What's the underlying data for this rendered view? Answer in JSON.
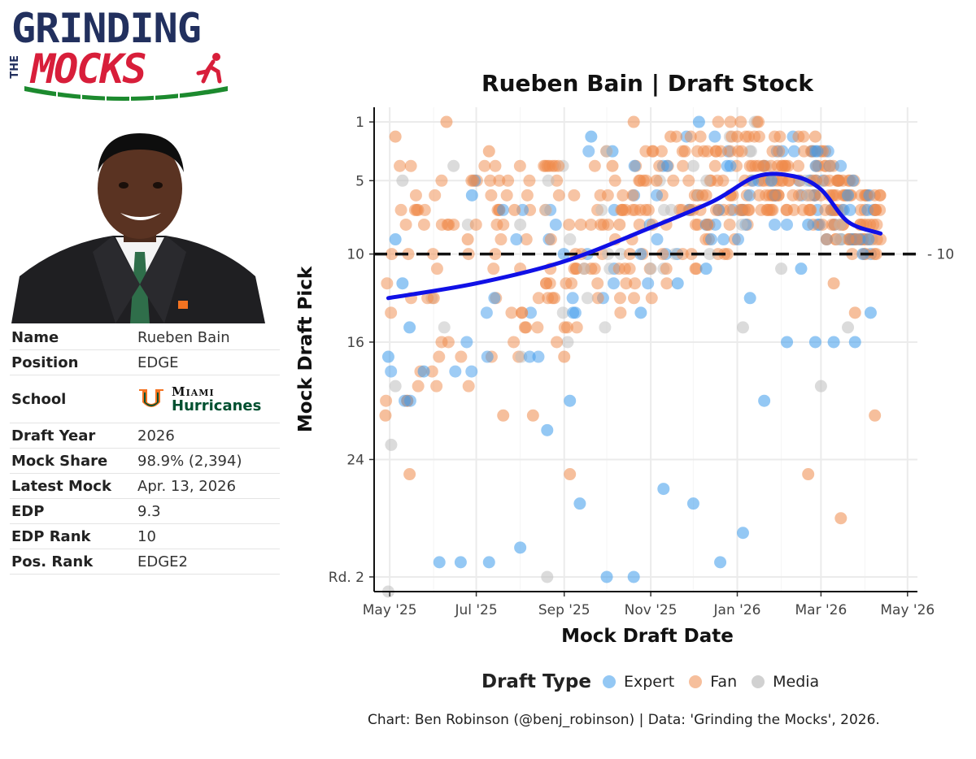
{
  "logo": {
    "line1": "GRINDING",
    "line2": "THE",
    "line3": "MOCKS"
  },
  "player": {
    "rows": [
      {
        "label": "Name",
        "value": "Rueben Bain"
      },
      {
        "label": "Position",
        "value": "EDGE"
      },
      {
        "label": "School",
        "value": ""
      },
      {
        "label": "Draft Year",
        "value": "2026"
      },
      {
        "label": "Mock Share",
        "value": "98.9% (2,394)"
      },
      {
        "label": "Latest Mock",
        "value": "Apr. 13, 2026"
      },
      {
        "label": "EDP",
        "value": "9.3"
      },
      {
        "label": "EDP Rank",
        "value": "10"
      },
      {
        "label": "Pos. Rank",
        "value": "EDGE2"
      }
    ],
    "school_line1": "Miami",
    "school_line2": "Hurricanes",
    "school_mark": "U"
  },
  "colors": {
    "expert": "#3d9aeb",
    "fan": "#ef8a4a",
    "media": "#bdbdbd",
    "trend": "#1010e6",
    "school_green": "#005030",
    "school_orange": "#f47321"
  },
  "caption": "Chart: Ben Robinson (@benj_robinson) | Data: 'Grinding the Mocks', 2026.",
  "chart_data": {
    "type": "scatter",
    "title": "Rueben Bain | Draft Stock",
    "xlabel": "Mock Draft Date",
    "ylabel": "Mock Draft Pick",
    "x_ticks": [
      "May '25",
      "Jul '25",
      "Sep '25",
      "Nov '25",
      "Jan '26",
      "Mar '26",
      "May '26"
    ],
    "x_range": [
      "2025-04-20",
      "2026-05-08"
    ],
    "y_ticks": [
      1,
      5,
      10,
      16,
      24,
      32
    ],
    "y_tick_labels": [
      "1",
      "5",
      "10",
      "16",
      "24",
      "Rd. 2"
    ],
    "y_range": [
      0,
      33
    ],
    "reference_line": {
      "y": 10,
      "label": "10",
      "style": "dashed"
    },
    "legend": {
      "title": "Draft Type",
      "entries": [
        "Expert",
        "Fan",
        "Media"
      ],
      "position": "bottom"
    },
    "trend": {
      "name": "smoothed average",
      "x": [
        "2025-04-30",
        "2025-07-01",
        "2025-09-01",
        "2025-11-01",
        "2025-12-15",
        "2026-01-15",
        "2026-02-10",
        "2026-03-01",
        "2026-03-20",
        "2026-04-12"
      ],
      "y": [
        13.0,
        12.0,
        10.5,
        8.2,
        6.4,
        4.7,
        4.7,
        5.6,
        7.8,
        8.6
      ]
    },
    "series": [
      {
        "name": "Expert",
        "sampled": true,
        "points": [
          [
            "2025-04-30",
            17
          ],
          [
            "2025-05-10",
            12
          ],
          [
            "2025-05-15",
            15
          ],
          [
            "2025-05-25",
            18
          ],
          [
            "2025-06-05",
            31
          ],
          [
            "2025-06-20",
            31
          ],
          [
            "2025-07-10",
            31
          ],
          [
            "2025-08-01",
            30
          ],
          [
            "2025-08-20",
            22
          ],
          [
            "2025-09-05",
            20
          ],
          [
            "2025-09-12",
            27
          ],
          [
            "2025-10-01",
            32
          ],
          [
            "2025-10-20",
            32
          ],
          [
            "2025-11-10",
            26
          ],
          [
            "2025-12-01",
            27
          ],
          [
            "2025-12-20",
            31
          ],
          [
            "2026-01-05",
            29
          ],
          [
            "2026-01-20",
            20
          ],
          [
            "2026-02-05",
            16
          ],
          [
            "2026-02-25",
            16
          ],
          [
            "2026-03-10",
            16
          ],
          [
            "2026-03-25",
            16
          ],
          [
            "2026-04-05",
            14
          ],
          [
            "2025-10-25",
            14
          ],
          [
            "2025-11-20",
            12
          ],
          [
            "2025-12-10",
            11
          ],
          [
            "2026-01-10",
            13
          ],
          [
            "2026-02-15",
            11
          ],
          [
            "2026-03-05",
            9
          ],
          [
            "2026-03-20",
            6
          ],
          [
            "2025-12-05",
            1
          ],
          [
            "2026-01-25",
            5
          ],
          [
            "2026-02-20",
            8
          ],
          [
            "2025-10-05",
            3
          ],
          [
            "2025-09-20",
            2
          ],
          [
            "2025-06-28",
            6
          ],
          [
            "2025-05-05",
            9
          ]
        ]
      },
      {
        "name": "Fan",
        "sampled": true,
        "points": [
          [
            "2025-04-28",
            21
          ],
          [
            "2025-05-05",
            2
          ],
          [
            "2025-05-20",
            7
          ],
          [
            "2025-06-10",
            1
          ],
          [
            "2025-06-25",
            9
          ],
          [
            "2025-07-10",
            3
          ],
          [
            "2025-07-28",
            7
          ],
          [
            "2025-08-10",
            21
          ],
          [
            "2025-08-25",
            13
          ],
          [
            "2025-09-05",
            25
          ],
          [
            "2025-09-20",
            11
          ],
          [
            "2025-10-05",
            4
          ],
          [
            "2025-10-20",
            1
          ],
          [
            "2025-11-05",
            5
          ],
          [
            "2025-11-25",
            3
          ],
          [
            "2025-12-10",
            6
          ],
          [
            "2026-01-01",
            2
          ],
          [
            "2026-01-20",
            4
          ],
          [
            "2026-02-05",
            7
          ],
          [
            "2026-02-20",
            25
          ],
          [
            "2026-03-05",
            9
          ],
          [
            "2026-03-15",
            28
          ],
          [
            "2026-03-25",
            14
          ],
          [
            "2026-04-08",
            21
          ],
          [
            "2025-05-15",
            25
          ],
          [
            "2025-06-01",
            13
          ],
          [
            "2025-07-20",
            21
          ],
          [
            "2025-08-05",
            15
          ],
          [
            "2025-09-01",
            17
          ],
          [
            "2025-10-10",
            8
          ],
          [
            "2025-11-15",
            2
          ],
          [
            "2025-12-25",
            10
          ],
          [
            "2026-01-30",
            6
          ],
          [
            "2026-02-25",
            2
          ],
          [
            "2026-03-10",
            12
          ]
        ]
      },
      {
        "name": "Media",
        "sampled": true,
        "points": [
          [
            "2025-04-30",
            33
          ],
          [
            "2025-05-02",
            23
          ],
          [
            "2025-05-05",
            19
          ],
          [
            "2025-05-10",
            5
          ],
          [
            "2025-06-15",
            4
          ],
          [
            "2025-08-20",
            32
          ],
          [
            "2025-09-15",
            11
          ],
          [
            "2025-10-01",
            3
          ],
          [
            "2025-11-01",
            11
          ],
          [
            "2026-01-05",
            15
          ],
          [
            "2026-02-01",
            11
          ],
          [
            "2026-03-01",
            19
          ],
          [
            "2026-03-20",
            15
          ],
          [
            "2025-08-01",
            8
          ],
          [
            "2025-12-01",
            4
          ]
        ]
      }
    ]
  }
}
